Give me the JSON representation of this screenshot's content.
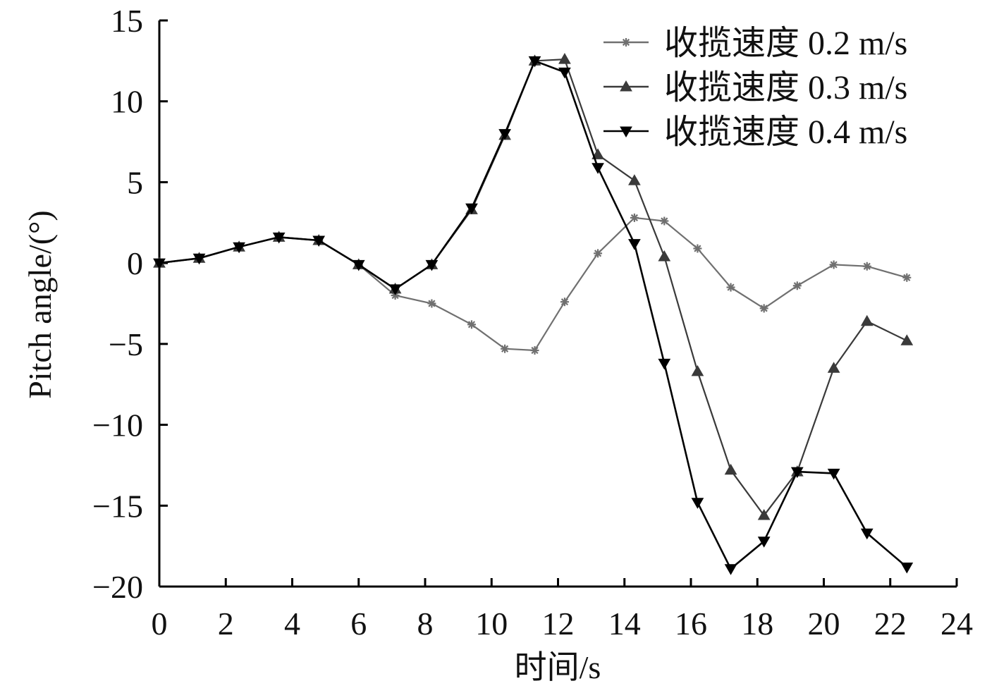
{
  "chart_data": {
    "type": "line",
    "title": "",
    "xlabel": "时间/s",
    "ylabel": "Pitch angle/(°)",
    "xlim": [
      0,
      24
    ],
    "ylim": [
      -20,
      15
    ],
    "x_ticks": [
      "0",
      "2",
      "4",
      "6",
      "8",
      "10",
      "12",
      "14",
      "16",
      "18",
      "20",
      "22",
      "24"
    ],
    "y_ticks": [
      "15",
      "10",
      "5",
      "0",
      "−5",
      "−10",
      "−15",
      "−20"
    ],
    "grid": false,
    "legend_position": "top-right",
    "x": [
      0,
      1.2,
      2.4,
      3.6,
      4.8,
      6.0,
      7.1,
      8.2,
      9.4,
      10.4,
      11.3,
      12.2,
      13.2,
      14.3,
      15.2,
      16.2,
      17.2,
      18.2,
      19.2,
      20.3,
      21.3,
      22.5
    ],
    "series": [
      {
        "name": "收揽速度 0.2 m/s",
        "marker": "star",
        "color": "#707070",
        "values": [
          0,
          0.3,
          1.0,
          1.6,
          1.4,
          -0.1,
          -2.0,
          -2.5,
          -3.8,
          -5.3,
          -5.4,
          -2.4,
          0.6,
          2.8,
          2.6,
          0.9,
          -1.5,
          -2.8,
          -1.4,
          -0.1,
          -0.2,
          -0.9
        ]
      },
      {
        "name": "收揽速度 0.3 m/s",
        "marker": "triangle-up",
        "color": "#3a3a3a",
        "values": [
          0,
          0.3,
          1.0,
          1.6,
          1.4,
          -0.1,
          -1.6,
          -0.1,
          3.3,
          7.9,
          12.5,
          12.6,
          6.7,
          5.1,
          0.4,
          -6.7,
          -12.8,
          -15.6,
          -12.9,
          -6.5,
          -3.6,
          -4.8
        ]
      },
      {
        "name": "收揽速度 0.4 m/s",
        "marker": "triangle-down",
        "color": "#000000",
        "values": [
          0,
          0.3,
          1.0,
          1.6,
          1.4,
          -0.1,
          -1.6,
          -0.1,
          3.4,
          8.0,
          12.5,
          11.8,
          5.9,
          1.2,
          -6.2,
          -14.8,
          -18.9,
          -17.2,
          -12.9,
          -13.0,
          -16.7,
          -18.8
        ]
      }
    ]
  }
}
